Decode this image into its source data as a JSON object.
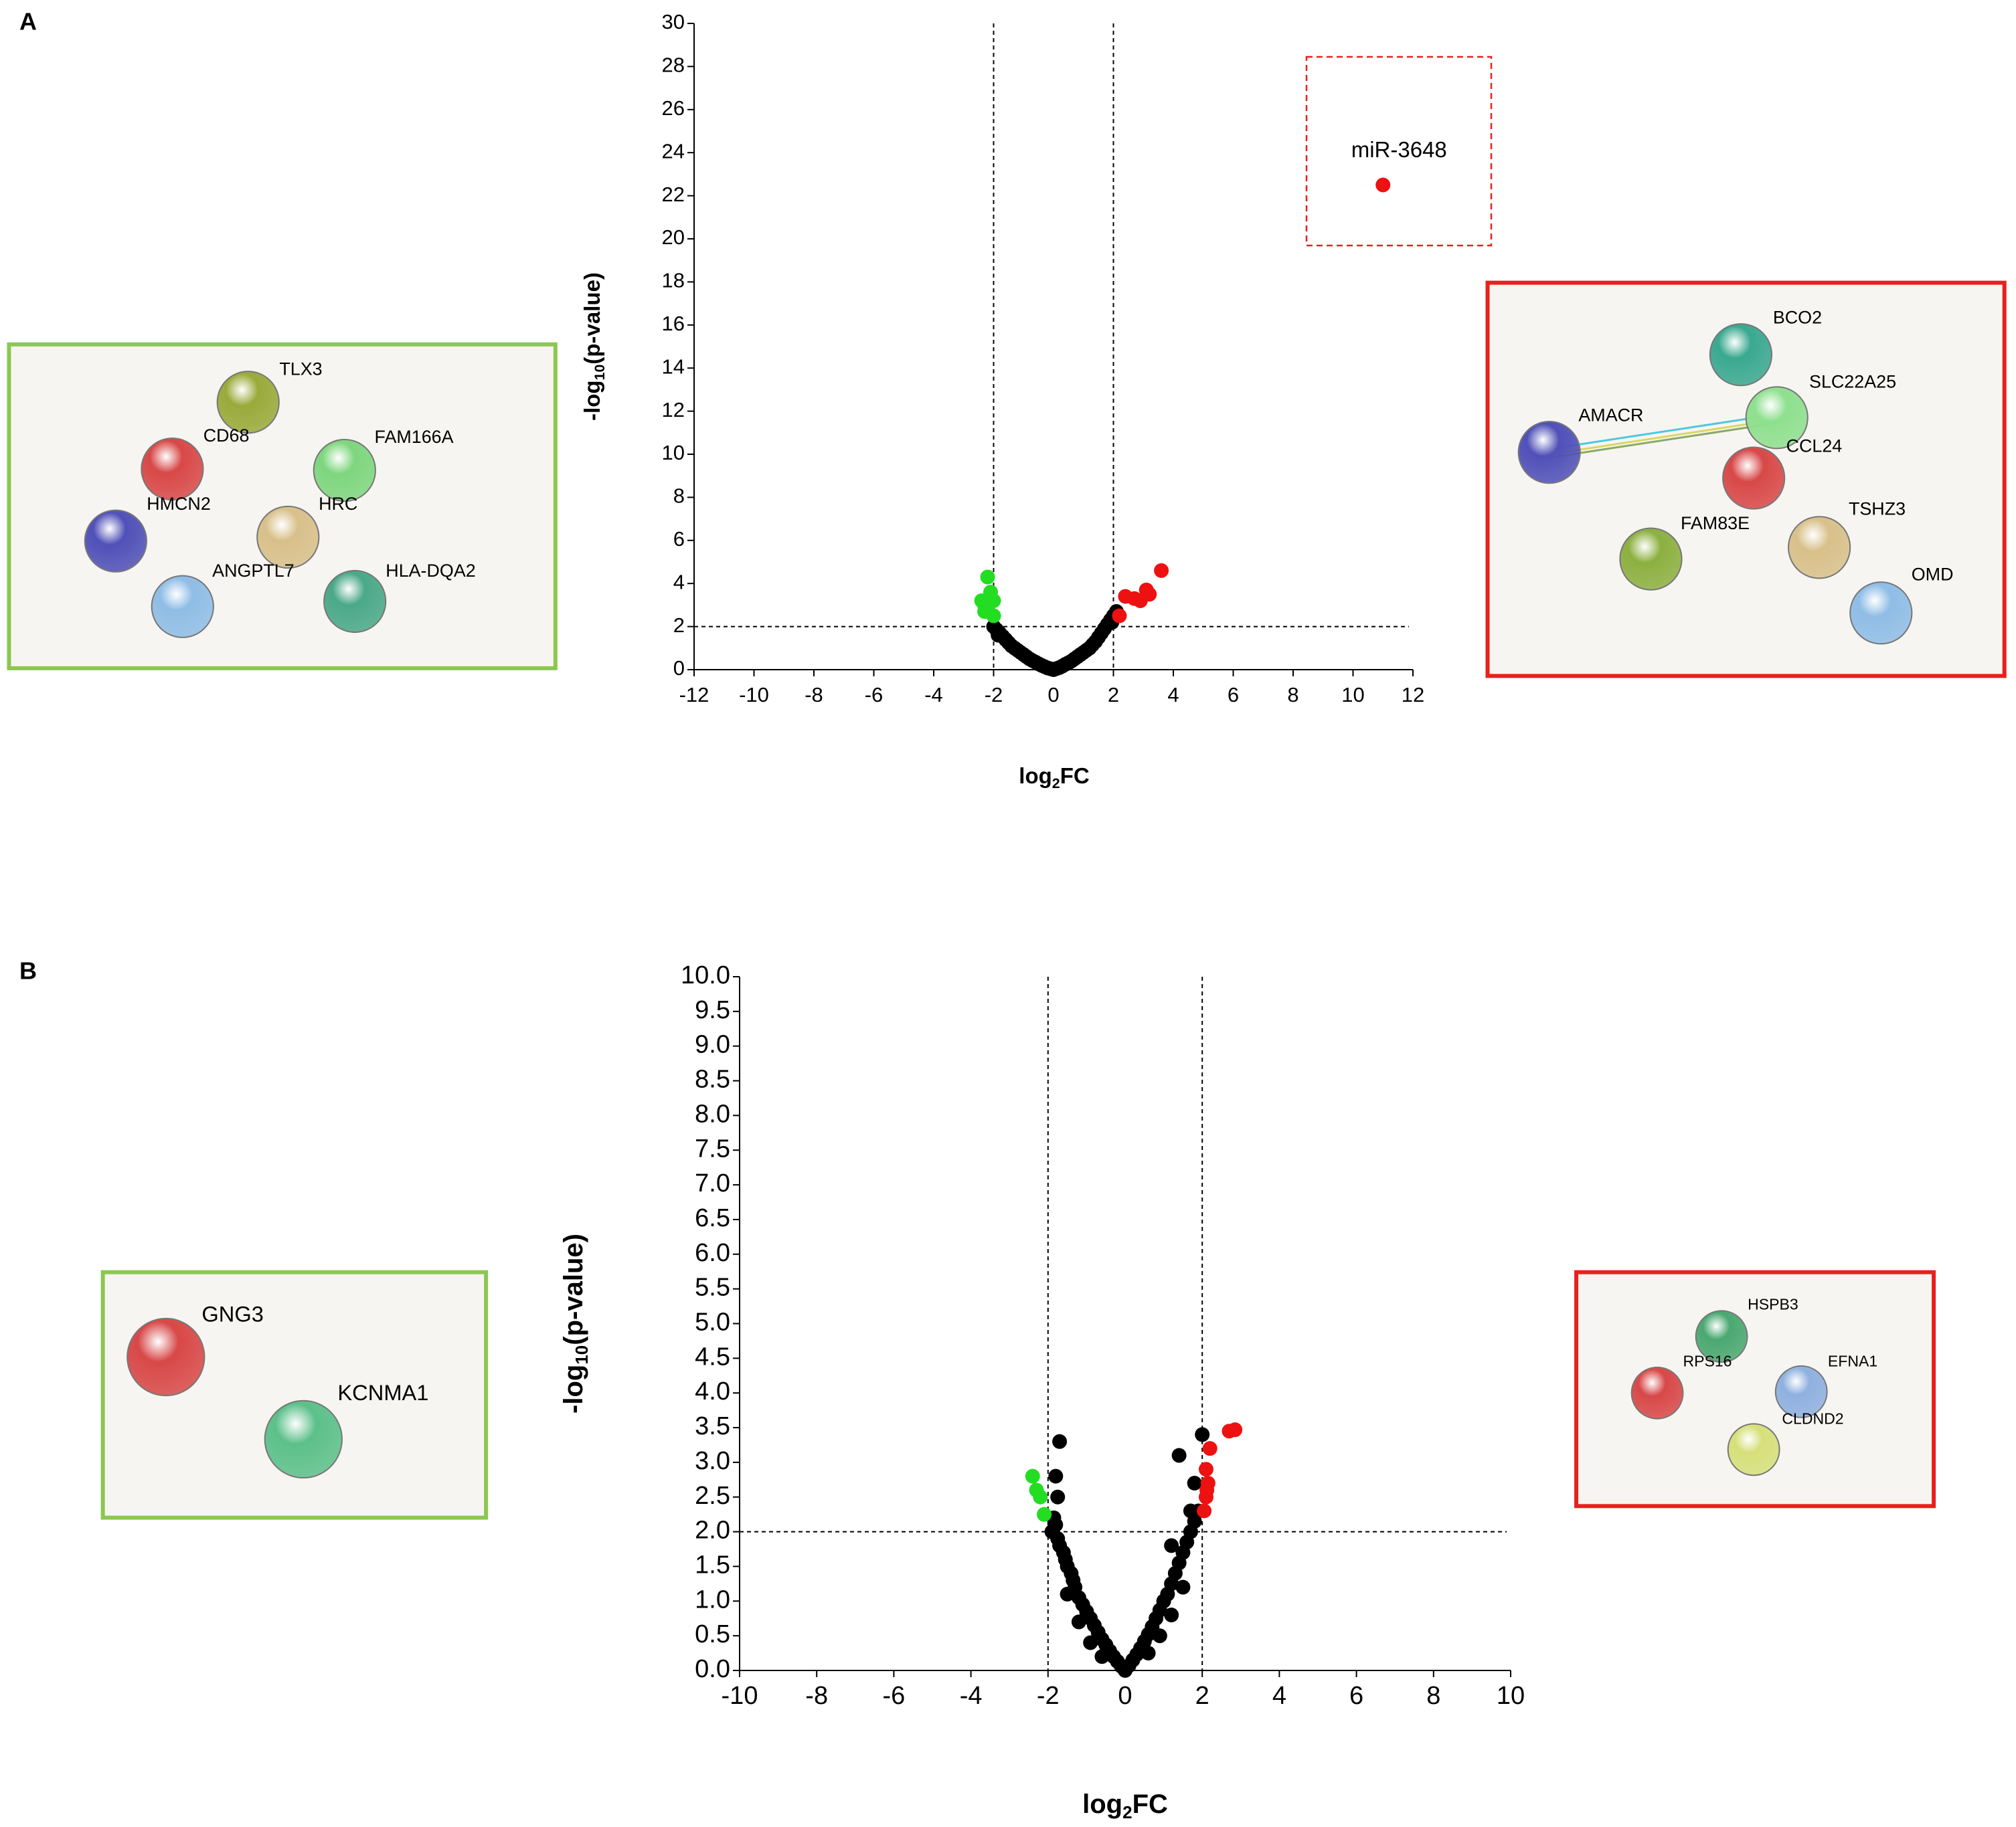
{
  "chart_data": [
    {
      "type": "scatter",
      "panel_label": "A",
      "xlabel": [
        "log",
        "2",
        "FC"
      ],
      "ylabel": [
        "-log",
        "10",
        "(p-value)"
      ],
      "xlim": [
        -12,
        12
      ],
      "xticks": [
        -12,
        -10,
        -8,
        -6,
        -4,
        -2,
        0,
        2,
        4,
        6,
        8,
        10,
        12
      ],
      "ylim": [
        0,
        30
      ],
      "yticks": [
        0,
        2,
        4,
        6,
        8,
        10,
        12,
        14,
        16,
        18,
        20,
        22,
        24,
        26,
        28,
        30
      ],
      "thresholds": {
        "x": [
          -2,
          2
        ],
        "y": 2
      },
      "annotation": "miR-3648",
      "series": [
        {
          "color": "#000000",
          "x": [
            -2.0,
            -1.9,
            -1.8,
            -1.7,
            -1.6,
            -1.5,
            -1.4,
            -1.3,
            -1.2,
            -1.1,
            -1.0,
            -0.9,
            -0.8,
            -0.7,
            -0.6,
            -0.5,
            -0.4,
            -0.3,
            -0.2,
            -0.1,
            0,
            0.1,
            0.2,
            0.3,
            0.4,
            0.5,
            0.6,
            0.7,
            0.8,
            0.9,
            1.0,
            1.1,
            1.2,
            1.3,
            1.4,
            1.5,
            1.6,
            1.7,
            1.8,
            1.9,
            2.0,
            2.1,
            -1.85,
            1.95
          ],
          "values": [
            2.0,
            1.85,
            1.7,
            1.55,
            1.4,
            1.25,
            1.1,
            1.0,
            0.9,
            0.8,
            0.7,
            0.6,
            0.5,
            0.42,
            0.35,
            0.27,
            0.2,
            0.14,
            0.08,
            0.04,
            0,
            0.05,
            0.1,
            0.17,
            0.25,
            0.32,
            0.4,
            0.5,
            0.6,
            0.7,
            0.8,
            0.9,
            1.0,
            1.15,
            1.3,
            1.5,
            1.7,
            1.9,
            2.1,
            2.3,
            2.5,
            2.7,
            1.6,
            2.2
          ]
        },
        {
          "color": "#22dd22",
          "x": [
            -2.2,
            -2.4,
            -2.3,
            -2.1,
            -2.0,
            -2.2,
            -2.0,
            -2.3
          ],
          "values": [
            4.3,
            3.2,
            3.0,
            3.6,
            3.2,
            2.8,
            2.5,
            2.7
          ]
        },
        {
          "color": "#ee1111",
          "x": [
            3.6,
            3.1,
            3.2,
            2.7,
            2.4,
            2.9,
            2.2,
            11
          ],
          "values": [
            4.6,
            3.7,
            3.5,
            3.3,
            3.4,
            3.2,
            2.5,
            22.5
          ]
        }
      ]
    },
    {
      "type": "scatter",
      "panel_label": "B",
      "xlabel": [
        "log",
        "2",
        "FC"
      ],
      "ylabel": [
        "-log",
        "10",
        "(p-value)"
      ],
      "xlim": [
        -10,
        10
      ],
      "xticks": [
        -10,
        -8,
        -6,
        -4,
        -2,
        0,
        2,
        4,
        6,
        8,
        10
      ],
      "ylim": [
        0,
        10
      ],
      "yticks": [
        {
          "value": 0,
          "label": "0.0"
        },
        0.5,
        {
          "value": 1,
          "label": "1.0"
        },
        1.5,
        {
          "value": 2,
          "label": "2.0"
        },
        2.5,
        {
          "value": 3,
          "label": "3.0"
        },
        3.5,
        {
          "value": 4,
          "label": "4.0"
        },
        4.5,
        {
          "value": 5,
          "label": "5.0"
        },
        5.5,
        {
          "value": 6,
          "label": "6.0"
        },
        6.5,
        {
          "value": 7,
          "label": "7.0"
        },
        7.5,
        {
          "value": 8,
          "label": "8.0"
        },
        8.5,
        {
          "value": 9,
          "label": "9.0"
        },
        9.5,
        {
          "value": 10,
          "label": "10.0"
        }
      ],
      "thresholds": {
        "x": [
          -2,
          2
        ],
        "y": 2
      },
      "series": [
        {
          "color": "#000000",
          "x": [
            -1.9,
            -1.8,
            -1.75,
            -1.7,
            -1.6,
            -1.55,
            -1.5,
            -1.4,
            -1.35,
            -1.3,
            -1.2,
            -1.1,
            -1.0,
            -0.9,
            -0.8,
            -0.7,
            -0.6,
            -0.5,
            -0.4,
            -0.3,
            -0.2,
            -0.1,
            0,
            0.1,
            0.2,
            0.3,
            0.4,
            0.5,
            0.6,
            0.7,
            0.8,
            0.9,
            1.0,
            1.1,
            1.2,
            1.3,
            1.4,
            1.5,
            1.6,
            1.7,
            1.8,
            1.9,
            -1.7,
            -1.8,
            -1.75,
            -1.85,
            1.4,
            2.0,
            1.8,
            1.7,
            1.2,
            -1.5,
            -1.2,
            -0.9,
            0.9,
            1.2,
            1.5,
            -0.6,
            0.6
          ],
          "values": [
            2.0,
            2.1,
            1.9,
            1.8,
            1.7,
            1.6,
            1.5,
            1.4,
            1.3,
            1.2,
            1.05,
            0.95,
            0.85,
            0.75,
            0.65,
            0.55,
            0.45,
            0.37,
            0.28,
            0.2,
            0.13,
            0.06,
            0,
            0.07,
            0.15,
            0.23,
            0.32,
            0.42,
            0.52,
            0.63,
            0.75,
            0.87,
            1.0,
            1.1,
            1.25,
            1.4,
            1.55,
            1.7,
            1.85,
            2.0,
            2.15,
            2.3,
            3.3,
            2.8,
            2.5,
            2.2,
            3.1,
            3.4,
            2.7,
            2.3,
            1.8,
            1.1,
            0.7,
            0.4,
            0.5,
            0.8,
            1.2,
            0.2,
            0.25
          ]
        },
        {
          "color": "#22dd22",
          "x": [
            -2.4,
            -2.3,
            -2.2,
            -2.1
          ],
          "values": [
            2.8,
            2.6,
            2.5,
            2.25
          ]
        },
        {
          "color": "#ee1111",
          "x": [
            2.7,
            2.85,
            2.2,
            2.1,
            2.15,
            2.1,
            2.05,
            2.12
          ],
          "values": [
            3.45,
            3.47,
            3.2,
            2.9,
            2.7,
            2.5,
            2.3,
            2.6
          ]
        }
      ]
    }
  ],
  "networks": [
    {
      "border_color": "#8cc751",
      "nodes": [
        {
          "label": "TLX3",
          "color": "#9aaa3a"
        },
        {
          "label": "CD68",
          "color": "#d84848"
        },
        {
          "label": "FAM166A",
          "color": "#7ed67e"
        },
        {
          "label": "HMCN2",
          "color": "#5050b8"
        },
        {
          "label": "HRC",
          "color": "#d8c08a"
        },
        {
          "label": "ANGPTL7",
          "color": "#8fbde6"
        },
        {
          "label": "HLA-DQA2",
          "color": "#4aa888"
        }
      ]
    },
    {
      "border_color": "#e8201e",
      "nodes": [
        {
          "label": "BCO2",
          "color": "#3aa890"
        },
        {
          "label": "SLC22A25",
          "color": "#8ee08e"
        },
        {
          "label": "AMACR",
          "color": "#5050b8"
        },
        {
          "label": "CCL24",
          "color": "#d84848"
        },
        {
          "label": "FAM83E",
          "color": "#8cb040"
        },
        {
          "label": "TSHZ3",
          "color": "#d8c08a"
        },
        {
          "label": "OMD",
          "color": "#8fbde6"
        }
      ]
    },
    {
      "border_color": "#8cc751",
      "nodes": [
        {
          "label": "GNG3",
          "color": "#d84848"
        },
        {
          "label": "KCNMA1",
          "color": "#5cc08a"
        }
      ]
    },
    {
      "border_color": "#e8201e",
      "nodes": [
        {
          "label": "HSPB3",
          "color": "#4aa870"
        },
        {
          "label": "RPS16",
          "color": "#d84848"
        },
        {
          "label": "EFNA1",
          "color": "#8fb0e0"
        },
        {
          "label": "CLDND2",
          "color": "#d6e07a"
        }
      ]
    }
  ]
}
